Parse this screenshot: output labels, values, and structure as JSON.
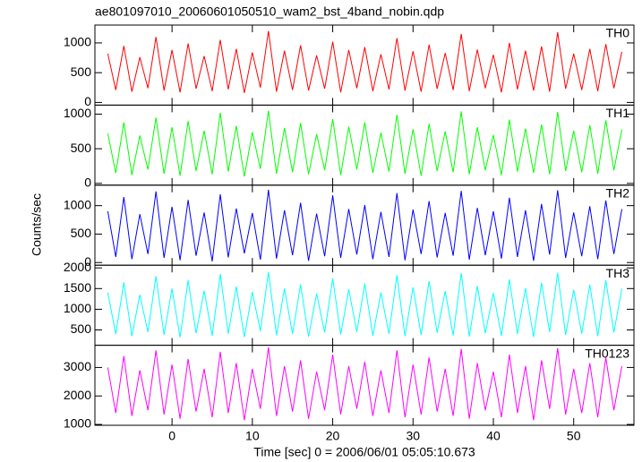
{
  "chart_data": {
    "type": "line",
    "title": "ae801097010_20060601050510_wam2_bst_4band_nobin.qdp",
    "x_label": "Time [sec] 0 = 2006/06/01 05:05:10.673",
    "y_label": "Counts/sec",
    "xlim": [
      -9.6,
      57.5
    ],
    "xticks": [
      0,
      10,
      20,
      30,
      40,
      50
    ],
    "x": [
      -8,
      -7,
      -6,
      -5,
      -4,
      -3,
      -2,
      -1,
      0,
      1,
      2,
      3,
      4,
      5,
      6,
      7,
      8,
      9,
      10,
      11,
      12,
      13,
      14,
      15,
      16,
      17,
      18,
      19,
      20,
      21,
      22,
      23,
      24,
      25,
      26,
      27,
      28,
      29,
      30,
      31,
      32,
      33,
      34,
      35,
      36,
      37,
      38,
      39,
      40,
      41,
      42,
      43,
      44,
      45,
      46,
      47,
      48,
      49,
      50,
      51,
      52,
      53,
      54,
      55,
      56
    ],
    "series": [
      {
        "name": "TH0",
        "color": "#ff0000",
        "ylim": [
          -45,
          1300
        ],
        "yticks": [
          0,
          500,
          1000
        ],
        "values": [
          820,
          210,
          950,
          180,
          760,
          240,
          1100,
          200,
          880,
          170,
          990,
          230,
          780,
          190,
          1050,
          220,
          900,
          160,
          840,
          250,
          1200,
          180,
          870,
          210,
          960,
          200,
          790,
          230,
          1020,
          170,
          880,
          240,
          930,
          190,
          810,
          220,
          1080,
          200,
          860,
          180,
          970,
          230,
          830,
          210,
          1150,
          190,
          890,
          240,
          800,
          170,
          1000,
          220,
          870,
          200,
          940,
          180,
          1180,
          230,
          820,
          210,
          900,
          190,
          980,
          240,
          850
        ]
      },
      {
        "name": "TH1",
        "color": "#00ff00",
        "ylim": [
          -26,
          1130
        ],
        "yticks": [
          0,
          500,
          1000
        ],
        "values": [
          720,
          150,
          880,
          120,
          690,
          200,
          950,
          140,
          810,
          110,
          900,
          180,
          760,
          130,
          1020,
          170,
          830,
          100,
          740,
          210,
          1050,
          140,
          800,
          160,
          870,
          130,
          710,
          190,
          930,
          120,
          820,
          200,
          880,
          150,
          730,
          170,
          990,
          140,
          780,
          110,
          860,
          180,
          750,
          160,
          1040,
          130,
          810,
          190,
          700,
          120,
          920,
          170,
          790,
          150,
          850,
          130,
          1030,
          180,
          760,
          160,
          840,
          140,
          910,
          190,
          780
        ]
      },
      {
        "name": "TH2",
        "color": "#0000ff",
        "ylim": [
          -47,
          1360
        ],
        "yticks": [
          0,
          500,
          1000
        ],
        "values": [
          900,
          100,
          1150,
          60,
          850,
          150,
          1250,
          80,
          980,
          40,
          1100,
          120,
          880,
          20,
          1200,
          90,
          950,
          160,
          870,
          50,
          1280,
          70,
          920,
          130,
          1050,
          30,
          860,
          110,
          1180,
          80,
          940,
          140,
          1010,
          60,
          890,
          100,
          1220,
          40,
          930,
          150,
          1080,
          90,
          870,
          120,
          1260,
          50,
          960,
          130,
          900,
          70,
          1140,
          100,
          920,
          30,
          1030,
          140,
          1270,
          80,
          880,
          110,
          990,
          60,
          1090,
          150,
          940
        ]
      },
      {
        "name": "TH3",
        "color": "#00ffff",
        "ylim": [
          130,
          2065
        ],
        "yticks": [
          500,
          1000,
          1500,
          2000
        ],
        "values": [
          1400,
          400,
          1650,
          350,
          1350,
          450,
          1800,
          380,
          1500,
          320,
          1700,
          420,
          1450,
          360,
          1850,
          410,
          1550,
          330,
          1420,
          470,
          1900,
          370,
          1500,
          400,
          1600,
          340,
          1380,
          440,
          1750,
          390,
          1480,
          450,
          1620,
          360,
          1400,
          410,
          1820,
          350,
          1530,
          380,
          1680,
          430,
          1440,
          370,
          1870,
          340,
          1560,
          420,
          1390,
          360,
          1720,
          400,
          1510,
          330,
          1640,
          450,
          1880,
          380,
          1470,
          410,
          1590,
          350,
          1700,
          440,
          1500
        ]
      },
      {
        "name": "TH0123",
        "color": "#ff00ff",
        "ylim": [
          970,
          3780
        ],
        "yticks": [
          1000,
          2000,
          3000
        ],
        "values": [
          3000,
          1400,
          3400,
          1300,
          2900,
          1500,
          3600,
          1350,
          3100,
          1200,
          3300,
          1450,
          2950,
          1250,
          3550,
          1400,
          3150,
          1150,
          2950,
          1550,
          3700,
          1300,
          3050,
          1450,
          3250,
          1200,
          2850,
          1500,
          3450,
          1350,
          3050,
          1550,
          3200,
          1300,
          2900,
          1400,
          3600,
          1250,
          3100,
          1350,
          3350,
          1450,
          2950,
          1300,
          3650,
          1200,
          3150,
          1500,
          2850,
          1250,
          3450,
          1400,
          3050,
          1150,
          3250,
          1550,
          3680,
          1350,
          2950,
          1400,
          3150,
          1250,
          3350,
          1500,
          3050
        ]
      }
    ]
  }
}
